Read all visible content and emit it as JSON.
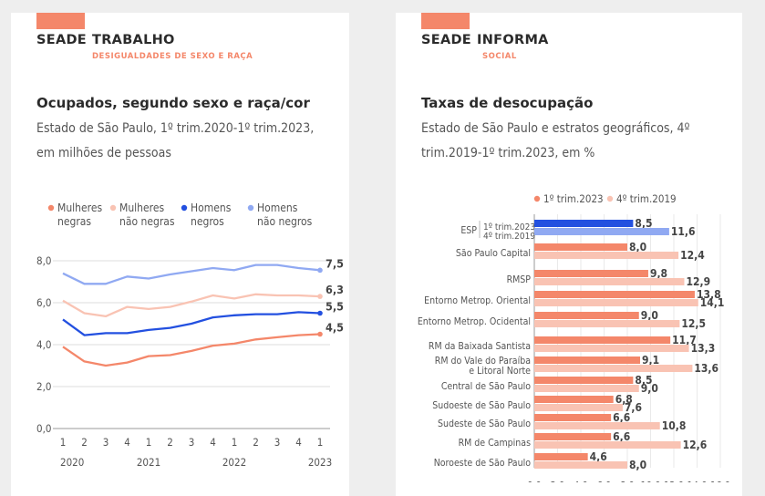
{
  "left": {
    "brand_main": "SEADE",
    "brand_sub": "TRABALHO",
    "section": "DESIGUALDADES DE SEXO E RAÇA",
    "title": "Ocupados, segundo sexo e raça/cor",
    "subtitle": "Estado de São Paulo, 1º trim.2020-1º trim.2023, em milhões de pessoas"
  },
  "right": {
    "brand_main": "SEADE",
    "brand_sub": "INFORMA",
    "section": "SOCIAL",
    "title": "Taxas de desocupação",
    "subtitle": "Estado de São Paulo e estratos geográficos, 4º trim.2019-1º trim.2023, em %"
  },
  "chart_data": [
    {
      "type": "line",
      "x": [
        "1",
        "2",
        "3",
        "4",
        "1",
        "2",
        "3",
        "4",
        "1",
        "2",
        "3",
        "4",
        "1"
      ],
      "year_labels": [
        {
          "label": "2020",
          "index": 0
        },
        {
          "label": "2021",
          "index": 4
        },
        {
          "label": "2022",
          "index": 8
        },
        {
          "label": "2023",
          "index": 12
        }
      ],
      "ylim": [
        0,
        8
      ],
      "yticks": [
        "0,0",
        "2,0",
        "4,0",
        "6,0",
        "8,0"
      ],
      "series": [
        {
          "name": "Mulheres negras",
          "color": "#f4876a",
          "values": [
            3.9,
            3.2,
            3.0,
            3.15,
            3.45,
            3.5,
            3.7,
            3.95,
            4.05,
            4.25,
            4.35,
            4.45,
            4.5
          ],
          "end_label": "4,5"
        },
        {
          "name": "Mulheres não negras",
          "color": "#f9c3b3",
          "values": [
            6.1,
            5.5,
            5.35,
            5.8,
            5.7,
            5.8,
            6.05,
            6.35,
            6.2,
            6.4,
            6.35,
            6.35,
            6.3
          ],
          "end_label": "6,3"
        },
        {
          "name": "Homens negros",
          "color": "#2350e0",
          "values": [
            5.2,
            4.45,
            4.55,
            4.55,
            4.7,
            4.8,
            5.0,
            5.3,
            5.4,
            5.45,
            5.45,
            5.55,
            5.5
          ],
          "end_label": "5,5"
        },
        {
          "name": "Homens não negros",
          "color": "#90a9f2",
          "values": [
            7.4,
            6.9,
            6.9,
            7.25,
            7.15,
            7.35,
            7.5,
            7.65,
            7.55,
            7.8,
            7.8,
            7.65,
            7.55
          ],
          "end_label": "7,5"
        }
      ],
      "legend": "top"
    },
    {
      "type": "bar",
      "orientation": "horizontal",
      "categories": [
        "ESP",
        "São Paulo Capital",
        "RMSP",
        "Entorno Metrop. Oriental",
        "Entorno Metrop. Ocidental",
        "RM da Baixada Santista",
        "RM do Vale do Paraíba e Litoral Norte",
        "Central de São Paulo",
        "Sudoeste de São Paulo",
        "Sudeste de São Paulo",
        "RM de Campinas",
        "Noroeste de São Paulo"
      ],
      "esp_sublabels": [
        "1º trim.2023",
        "4º trim.2019"
      ],
      "series": [
        {
          "name": "1º trim.2023",
          "color": "#f4876a",
          "esp_color": "#2350e0",
          "values": [
            8.5,
            8.0,
            9.8,
            13.8,
            9.0,
            11.7,
            9.1,
            8.5,
            6.8,
            6.6,
            6.6,
            4.6
          ],
          "labels": [
            "8,5",
            "8,0",
            "9,8",
            "13,8",
            "9,0",
            "11,7",
            "9,1",
            "8,5",
            "6,8",
            "6,6",
            "6,6",
            "4,6"
          ]
        },
        {
          "name": "4º trim.2019",
          "color": "#f9c3b3",
          "esp_color": "#90a9f2",
          "values": [
            11.6,
            12.4,
            12.9,
            14.1,
            12.5,
            13.3,
            13.6,
            9.0,
            7.6,
            10.8,
            12.6,
            8.0
          ],
          "labels": [
            "11,6",
            "12,4",
            "12,9",
            "14,1",
            "12,5",
            "13,3",
            "13,6",
            "9,0",
            "7,6",
            "10,8",
            "12,6",
            "8,0"
          ]
        }
      ],
      "xlim": [
        0,
        16
      ],
      "xticks": [
        "0,0",
        "2,0",
        "4,0",
        "6,0",
        "8,0",
        "10,0",
        "12,0",
        "14,0",
        "16,0"
      ],
      "legend": "top"
    }
  ]
}
